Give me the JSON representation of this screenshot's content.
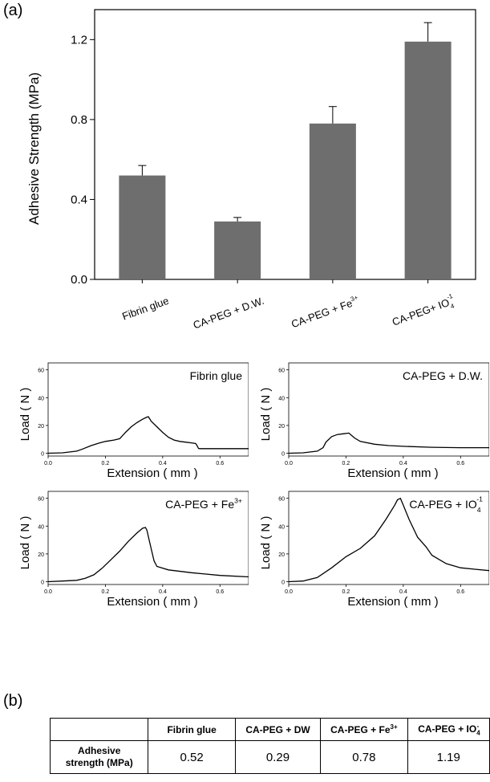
{
  "panel_labels": {
    "a": "(a)",
    "b": "(b)"
  },
  "chart_data": [
    {
      "id": "bar",
      "type": "bar",
      "ylabel": "Adhesive Strength (MPa)",
      "ylim": [
        0,
        1.35
      ],
      "yticks": [
        "0.0",
        "0.4",
        "0.8",
        "1.2"
      ],
      "ytick_values": [
        0,
        0.4,
        0.8,
        1.2
      ],
      "categories": [
        {
          "base": "Fibrin glue",
          "sup": "",
          "sub": ""
        },
        {
          "base": "CA-PEG + D.W.",
          "sup": "",
          "sub": ""
        },
        {
          "base": "CA-PEG + Fe",
          "sup": "3+",
          "sub": ""
        },
        {
          "base": "CA-PEG+ IO",
          "sup": "-1",
          "sub": "4"
        }
      ],
      "values": [
        0.52,
        0.29,
        0.78,
        1.19
      ],
      "errors": [
        0.05,
        0.02,
        0.085,
        0.095
      ],
      "bar_color": "#6e6e6e"
    },
    {
      "id": "curve1",
      "type": "line",
      "label": "Fibrin glue",
      "label_sup": "",
      "label_sub": "",
      "xlabel": "Extension ( mm )",
      "ylabel": "Load ( N )",
      "xlim": [
        0,
        0.7
      ],
      "ylim": [
        -2,
        65
      ],
      "xticks": [
        "0.0",
        "0.2",
        "0.4",
        "0.6"
      ],
      "xtick_values": [
        0,
        0.2,
        0.4,
        0.6
      ],
      "yticks": [
        "0",
        "20",
        "40",
        "60"
      ],
      "ytick_values": [
        0,
        20,
        40,
        60
      ],
      "x": [
        0,
        0.05,
        0.1,
        0.12,
        0.15,
        0.18,
        0.2,
        0.23,
        0.25,
        0.27,
        0.29,
        0.31,
        0.33,
        0.345,
        0.35,
        0.36,
        0.38,
        0.4,
        0.42,
        0.44,
        0.46,
        0.48,
        0.5,
        0.515,
        0.52,
        0.525,
        0.53,
        0.56,
        0.6,
        0.65,
        0.7
      ],
      "y": [
        0,
        0.3,
        1.5,
        3,
        5.5,
        7.5,
        8.5,
        9.5,
        10.5,
        15,
        19,
        22,
        24.5,
        26,
        26.3,
        23,
        19,
        15,
        11.5,
        9.5,
        8.5,
        8,
        7.5,
        7,
        5.5,
        3.5,
        3.3,
        3.3,
        3.3,
        3.3,
        3.3
      ]
    },
    {
      "id": "curve2",
      "type": "line",
      "label": "CA-PEG + D.W.",
      "label_sup": "",
      "label_sub": "",
      "xlabel": "Extension ( mm )",
      "ylabel": "Load ( N )",
      "xlim": [
        0,
        0.7
      ],
      "ylim": [
        -2,
        65
      ],
      "xticks": [
        "0.0",
        "0.2",
        "0.4",
        "0.6"
      ],
      "xtick_values": [
        0,
        0.2,
        0.4,
        0.6
      ],
      "yticks": [
        "0",
        "20",
        "40",
        "60"
      ],
      "ytick_values": [
        0,
        20,
        40,
        60
      ],
      "x": [
        0,
        0.05,
        0.1,
        0.12,
        0.13,
        0.15,
        0.17,
        0.19,
        0.21,
        0.23,
        0.25,
        0.3,
        0.35,
        0.4,
        0.5,
        0.6,
        0.7
      ],
      "y": [
        0,
        0.3,
        1.5,
        4,
        8,
        12,
        13.5,
        14,
        14.5,
        11,
        8.5,
        6.5,
        5.5,
        5,
        4.3,
        4,
        4
      ]
    },
    {
      "id": "curve3",
      "type": "line",
      "label": "CA-PEG + Fe",
      "label_sup": "3+",
      "label_sub": "",
      "xlabel": "Extension ( mm )",
      "ylabel": "Load ( N )",
      "xlim": [
        0,
        0.7
      ],
      "ylim": [
        -2,
        65
      ],
      "xticks": [
        "0.0",
        "0.2",
        "0.4",
        "0.6"
      ],
      "xtick_values": [
        0,
        0.2,
        0.4,
        0.6
      ],
      "yticks": [
        "0",
        "20",
        "40",
        "60"
      ],
      "ytick_values": [
        0,
        20,
        40,
        60
      ],
      "x": [
        0,
        0.05,
        0.1,
        0.13,
        0.16,
        0.19,
        0.22,
        0.25,
        0.28,
        0.31,
        0.33,
        0.34,
        0.345,
        0.355,
        0.37,
        0.38,
        0.42,
        0.5,
        0.6,
        0.7
      ],
      "y": [
        0,
        0.5,
        1,
        2.5,
        5,
        10,
        16,
        22,
        29,
        35,
        38.5,
        39,
        37,
        28,
        15,
        11,
        8.5,
        6.5,
        4.5,
        3.5
      ]
    },
    {
      "id": "curve4",
      "type": "line",
      "label": "CA-PEG + IO",
      "label_sup": "-1",
      "label_sub": "4",
      "xlabel": "Extension ( mm )",
      "ylabel": "Load ( N )",
      "xlim": [
        0,
        0.7
      ],
      "ylim": [
        -2,
        65
      ],
      "xticks": [
        "0.0",
        "0.2",
        "0.4",
        "0.6"
      ],
      "xtick_values": [
        0,
        0.2,
        0.4,
        0.6
      ],
      "yticks": [
        "0",
        "20",
        "40",
        "60"
      ],
      "ytick_values": [
        0,
        20,
        40,
        60
      ],
      "x": [
        0,
        0.05,
        0.1,
        0.15,
        0.2,
        0.25,
        0.3,
        0.34,
        0.37,
        0.38,
        0.39,
        0.4,
        0.42,
        0.45,
        0.48,
        0.5,
        0.55,
        0.6,
        0.65,
        0.7
      ],
      "y": [
        0,
        0.5,
        3,
        10,
        18,
        24,
        33,
        45,
        55,
        59,
        60,
        55,
        45,
        32,
        25,
        19,
        13,
        10,
        9,
        8
      ]
    }
  ],
  "table": {
    "columns": [
      {
        "base": "",
        "sup": "",
        "sub": ""
      },
      {
        "base": "Fibrin glue",
        "sup": "",
        "sub": ""
      },
      {
        "base": "CA-PEG + DW",
        "sup": "",
        "sub": ""
      },
      {
        "base": "CA-PEG + Fe",
        "sup": "3+",
        "sub": ""
      },
      {
        "base": "CA-PEG + IO",
        "sup": "-",
        "sub": "4"
      }
    ],
    "row_header_line1": "Adhesive",
    "row_header_line2": "strength (MPa)",
    "values": [
      "0.52",
      "0.29",
      "0.78",
      "1.19"
    ]
  }
}
